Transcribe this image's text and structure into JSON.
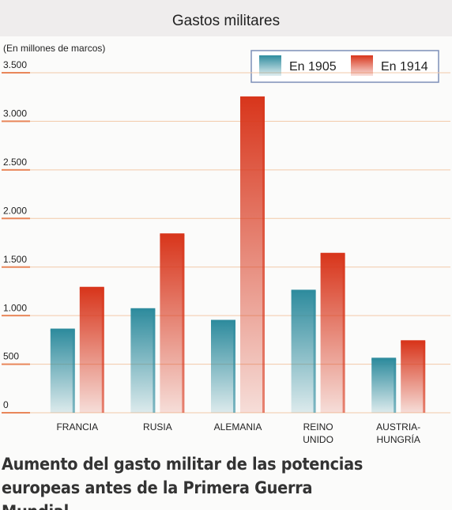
{
  "chart_data": {
    "type": "bar",
    "title": "Gastos militares",
    "subtitle": "(En millones de marcos)",
    "caption": "Aumento del gasto militar de las potencias europeas antes de la Primera Guerra Mundial.",
    "categories": [
      "FRANCIA",
      "RUSIA",
      "ALEMANIA",
      "REINO UNIDO",
      "AUSTRIA-HUNGRÍA"
    ],
    "series": [
      {
        "name": "En 1905",
        "color": "#2f8c9e",
        "values": [
          850,
          1060,
          940,
          1250,
          550
        ]
      },
      {
        "name": "En 1914",
        "color": "#d8361c",
        "values": [
          1280,
          1830,
          3240,
          1630,
          730
        ]
      }
    ],
    "ylim": [
      0,
      3500
    ],
    "yticks": [
      0,
      500,
      {
        "value": 1000,
        "label": "1.000"
      },
      {
        "value": 1500,
        "label": "1.500"
      },
      {
        "value": 2000,
        "label": "2.000"
      },
      {
        "value": 2500,
        "label": "2.500"
      },
      {
        "value": 3000,
        "label": "3.000"
      },
      {
        "value": 3500,
        "label": "3.500"
      }
    ],
    "grid": true,
    "legend": "top-right"
  }
}
